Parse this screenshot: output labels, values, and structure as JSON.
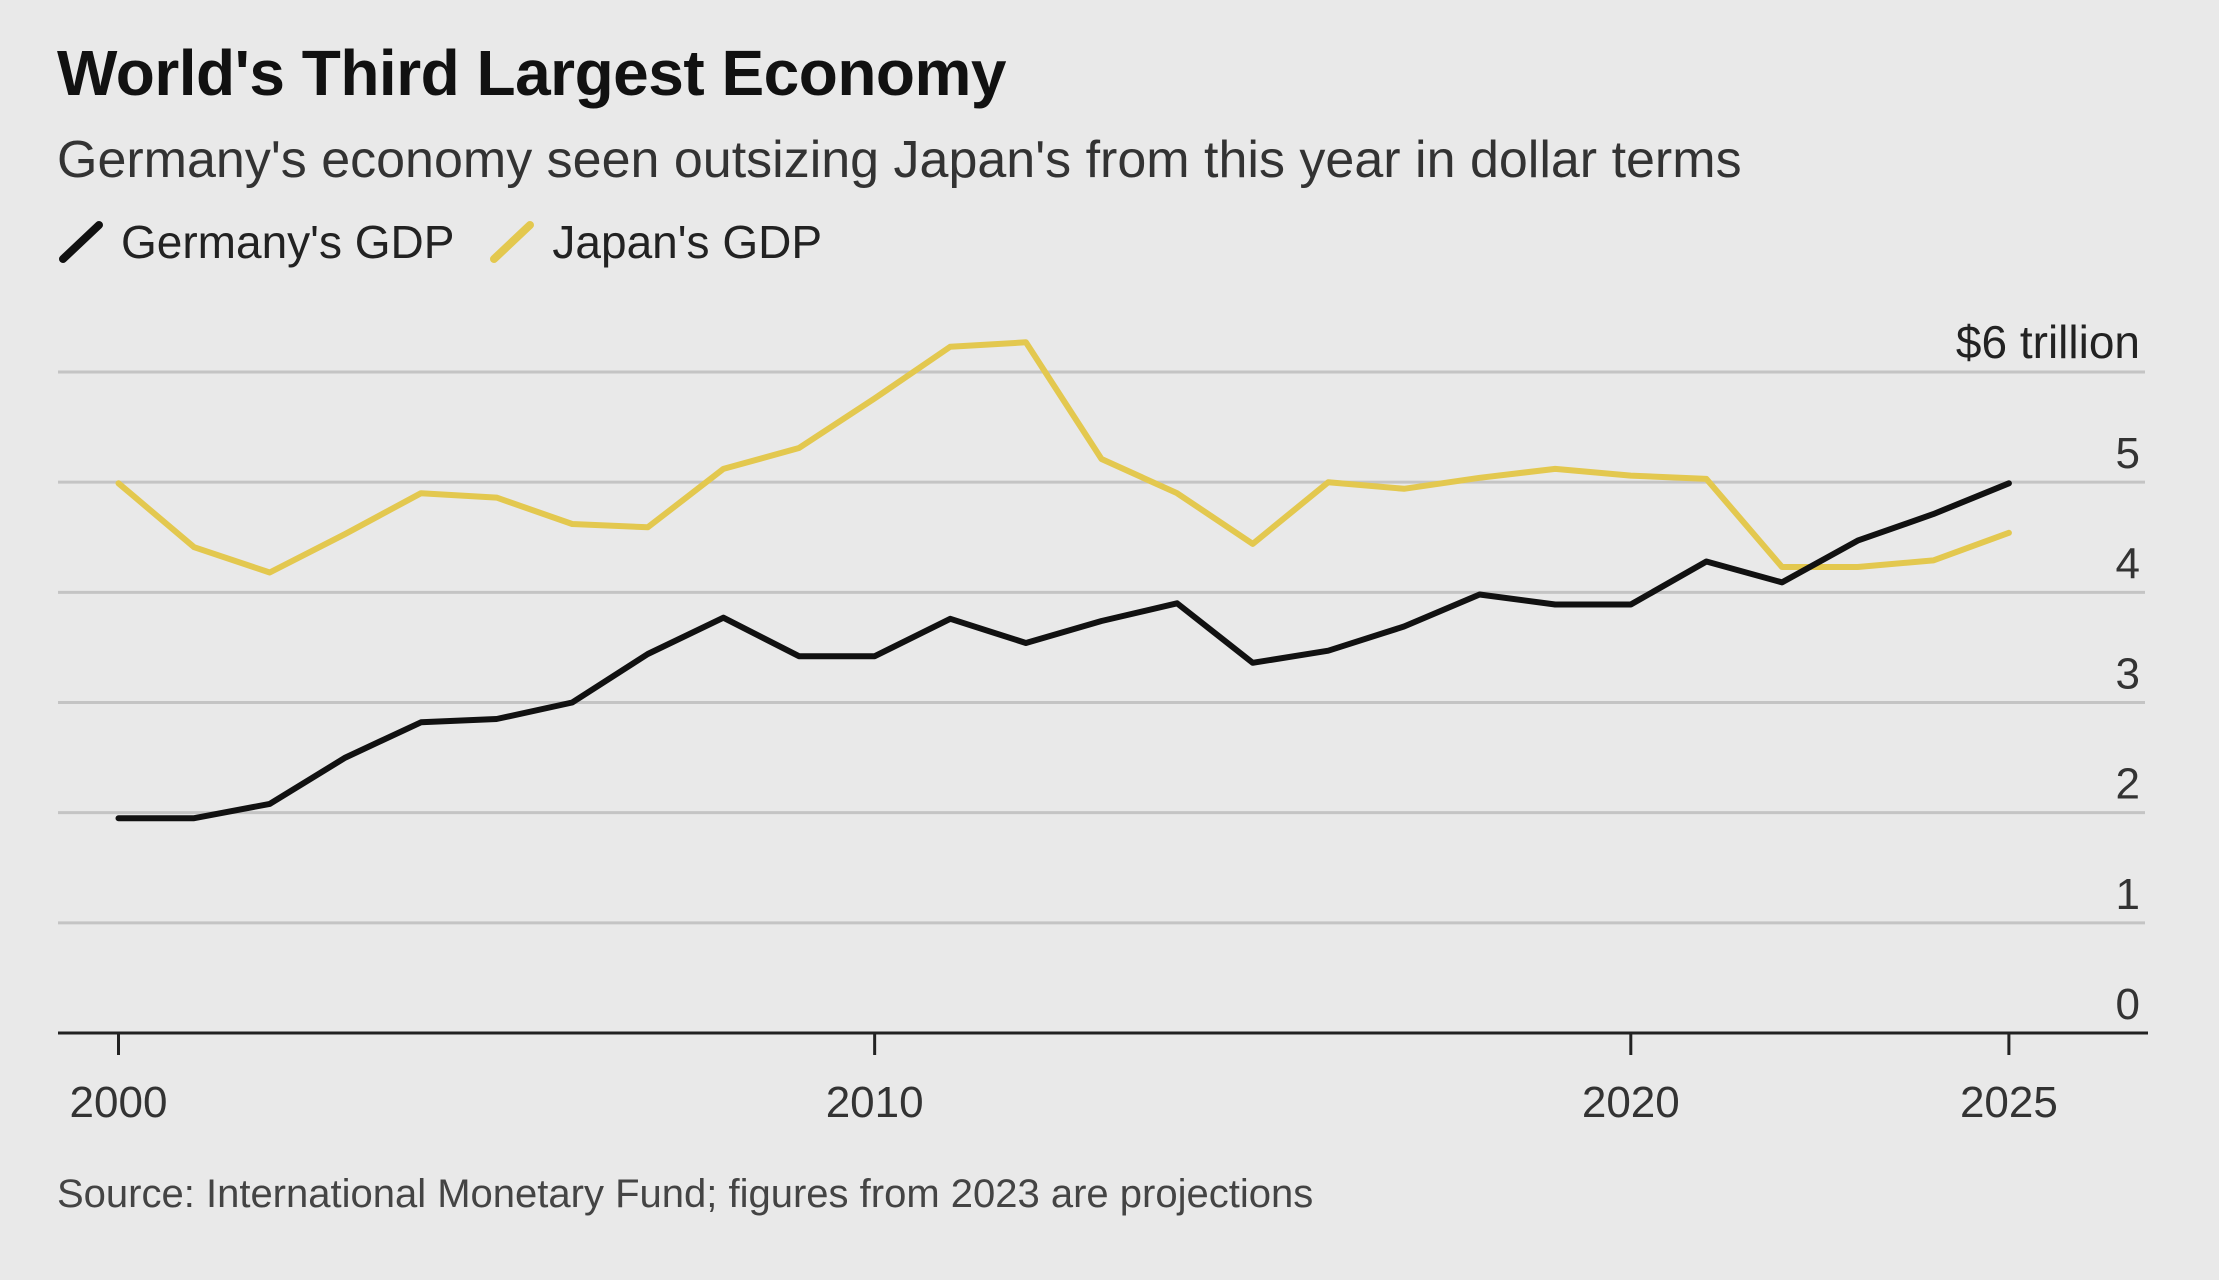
{
  "header": {
    "title": "World's Third Largest Economy",
    "subtitle": "Germany's economy seen outsizing Japan's from this year in dollar terms"
  },
  "legend": {
    "germany_label": "Germany's GDP",
    "japan_label": "Japan's GDP"
  },
  "footer": {
    "source": "Source: International Monetary Fund; figures from 2023 are projections"
  },
  "colors": {
    "germany": "#111111",
    "japan": "#e3c84f",
    "grid": "#c4c4c4",
    "axis": "#222222",
    "background": "#e9e9e9"
  },
  "chart_data": {
    "type": "line",
    "title": "World's Third Largest Economy",
    "subtitle": "Germany's economy seen outsizing Japan's from this year in dollar terms",
    "xlabel": "",
    "ylabel": "",
    "y_unit_label": "$6 trillion",
    "ylim": [
      0,
      6
    ],
    "y_ticks": [
      0,
      1,
      2,
      3,
      4,
      5,
      6
    ],
    "y_tick_labels": [
      "0",
      "1",
      "2",
      "3",
      "4",
      "5",
      "$6 trillion"
    ],
    "xlim": [
      1999.2,
      2026.8
    ],
    "x_ticks": [
      2000,
      2010,
      2020,
      2025
    ],
    "x_tick_labels": [
      "2000",
      "2010",
      "2020",
      "2025"
    ],
    "grid": true,
    "legend_position": "top-left",
    "x": [
      2000,
      2001,
      2002,
      2003,
      2004,
      2005,
      2006,
      2007,
      2008,
      2009,
      2010,
      2011,
      2012,
      2013,
      2014,
      2015,
      2016,
      2017,
      2018,
      2019,
      2020,
      2021,
      2022,
      2023,
      2024,
      2025
    ],
    "series": [
      {
        "name": "Germany's GDP",
        "values": [
          1.95,
          1.95,
          2.08,
          2.5,
          2.82,
          2.85,
          3.0,
          3.44,
          3.77,
          3.42,
          3.42,
          3.76,
          3.54,
          3.74,
          3.9,
          3.36,
          3.47,
          3.69,
          3.98,
          3.89,
          3.89,
          4.28,
          4.09,
          4.47,
          4.71,
          4.99
        ]
      },
      {
        "name": "Japan's GDP",
        "values": [
          4.99,
          4.41,
          4.18,
          4.53,
          4.9,
          4.86,
          4.62,
          4.59,
          5.12,
          5.31,
          5.76,
          6.23,
          6.27,
          5.21,
          4.9,
          4.44,
          5.0,
          4.94,
          5.04,
          5.12,
          5.06,
          5.03,
          4.23,
          4.23,
          4.29,
          4.54
        ]
      }
    ]
  }
}
